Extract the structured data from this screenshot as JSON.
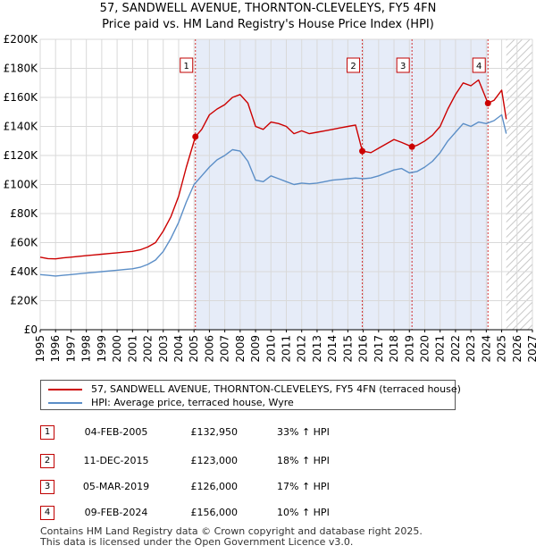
{
  "chart_data": {
    "type": "line",
    "title": "57, SANDWELL AVENUE, THORNTON-CLEVELEYS, FY5 4FN",
    "subtitle": "Price paid vs. HM Land Registry's House Price Index (HPI)",
    "xlim": [
      1995,
      2027
    ],
    "ylim": [
      0,
      200000
    ],
    "x_ticks": [
      "1995",
      "1996",
      "1997",
      "1998",
      "1999",
      "2000",
      "2001",
      "2002",
      "2003",
      "2004",
      "2005",
      "2006",
      "2007",
      "2008",
      "2009",
      "2010",
      "2011",
      "2012",
      "2013",
      "2014",
      "2015",
      "2016",
      "2017",
      "2018",
      "2019",
      "2020",
      "2021",
      "2022",
      "2023",
      "2024",
      "2025",
      "2026",
      "2027"
    ],
    "y_ticks": [
      {
        "value": 0,
        "label": "£0"
      },
      {
        "value": 20000,
        "label": "£20K"
      },
      {
        "value": 40000,
        "label": "£40K"
      },
      {
        "value": 60000,
        "label": "£60K"
      },
      {
        "value": 80000,
        "label": "£80K"
      },
      {
        "value": 100000,
        "label": "£100K"
      },
      {
        "value": 120000,
        "label": "£120K"
      },
      {
        "value": 140000,
        "label": "£140K"
      },
      {
        "value": 160000,
        "label": "£160K"
      },
      {
        "value": 180000,
        "label": "£180K"
      },
      {
        "value": 200000,
        "label": "£200K"
      }
    ],
    "grid": true,
    "hatched_region_start": 2025.3,
    "series": [
      {
        "name": "57, SANDWELL AVENUE, THORNTON-CLEVELEYS, FY5 4FN (terraced house)",
        "color": "#cc0000",
        "x": [
          1995.0,
          1995.5,
          1996.0,
          1996.5,
          1997.0,
          1997.5,
          1998.0,
          1998.5,
          1999.0,
          1999.5,
          2000.0,
          2000.5,
          2001.0,
          2001.5,
          2002.0,
          2002.5,
          2003.0,
          2003.5,
          2004.0,
          2004.5,
          2005.09,
          2005.5,
          2006.0,
          2006.5,
          2007.0,
          2007.5,
          2008.0,
          2008.5,
          2009.0,
          2009.5,
          2010.0,
          2010.5,
          2011.0,
          2011.5,
          2012.0,
          2012.5,
          2013.0,
          2013.5,
          2014.0,
          2014.5,
          2015.0,
          2015.5,
          2015.94,
          2016.5,
          2017.0,
          2017.5,
          2018.0,
          2018.5,
          2019.17,
          2019.5,
          2020.0,
          2020.5,
          2021.0,
          2021.5,
          2022.0,
          2022.5,
          2023.0,
          2023.5,
          2024.11,
          2024.5,
          2025.0,
          2025.3
        ],
        "values": [
          50000,
          49000,
          48800,
          49500,
          50000,
          50500,
          51000,
          51500,
          52000,
          52500,
          53000,
          53500,
          54000,
          55000,
          57000,
          60000,
          68000,
          78000,
          92000,
          112000,
          132950,
          138000,
          148000,
          152000,
          155000,
          160000,
          162000,
          156000,
          140000,
          138000,
          143000,
          142000,
          140000,
          135000,
          137000,
          135000,
          136000,
          137000,
          138000,
          139000,
          140000,
          141000,
          123000,
          122000,
          125000,
          128000,
          131000,
          129000,
          126000,
          127000,
          130000,
          134000,
          140000,
          152000,
          162000,
          170000,
          168000,
          172000,
          156000,
          158000,
          165000,
          145000
        ]
      },
      {
        "name": "HPI: Average price, terraced house, Wyre",
        "color": "#5b8ec7",
        "x": [
          1995.0,
          1995.5,
          1996.0,
          1996.5,
          1997.0,
          1997.5,
          1998.0,
          1998.5,
          1999.0,
          1999.5,
          2000.0,
          2000.5,
          2001.0,
          2001.5,
          2002.0,
          2002.5,
          2003.0,
          2003.5,
          2004.0,
          2004.5,
          2005.0,
          2005.5,
          2006.0,
          2006.5,
          2007.0,
          2007.5,
          2008.0,
          2008.5,
          2009.0,
          2009.5,
          2010.0,
          2010.5,
          2011.0,
          2011.5,
          2012.0,
          2012.5,
          2013.0,
          2013.5,
          2014.0,
          2014.5,
          2015.0,
          2015.5,
          2016.0,
          2016.5,
          2017.0,
          2017.5,
          2018.0,
          2018.5,
          2019.0,
          2019.5,
          2020.0,
          2020.5,
          2021.0,
          2021.5,
          2022.0,
          2022.5,
          2023.0,
          2023.5,
          2024.0,
          2024.5,
          2025.0,
          2025.3
        ],
        "values": [
          38000,
          37500,
          37000,
          37500,
          38000,
          38500,
          39000,
          39500,
          40000,
          40500,
          41000,
          41500,
          42000,
          43000,
          45000,
          48000,
          54000,
          63000,
          74000,
          88000,
          100000,
          106000,
          112000,
          117000,
          120000,
          124000,
          123000,
          116000,
          103000,
          102000,
          106000,
          104000,
          102000,
          100000,
          101000,
          100500,
          101000,
          102000,
          103000,
          103500,
          104000,
          104500,
          104000,
          104500,
          106000,
          108000,
          110000,
          111000,
          108000,
          109000,
          112000,
          116000,
          122000,
          130000,
          136000,
          142000,
          140000,
          143000,
          142000,
          144000,
          148000,
          135000
        ]
      }
    ],
    "sales": [
      {
        "num": "1",
        "x": 2005.09,
        "value": 132950
      },
      {
        "num": "2",
        "x": 2015.94,
        "value": 123000
      },
      {
        "num": "3",
        "x": 2019.17,
        "value": 126000
      },
      {
        "num": "4",
        "x": 2024.11,
        "value": 156000
      }
    ]
  },
  "legend": {
    "property": "57, SANDWELL AVENUE, THORNTON-CLEVELEYS, FY5 4FN (terraced house)",
    "hpi": "HPI: Average price, terraced house, Wyre"
  },
  "sales_table": [
    {
      "num": "1",
      "date": "04-FEB-2005",
      "price": "£132,950",
      "hpi": "33% ↑ HPI"
    },
    {
      "num": "2",
      "date": "11-DEC-2015",
      "price": "£123,000",
      "hpi": "18% ↑ HPI"
    },
    {
      "num": "3",
      "date": "05-MAR-2019",
      "price": "£126,000",
      "hpi": "17% ↑ HPI"
    },
    {
      "num": "4",
      "date": "09-FEB-2024",
      "price": "£156,000",
      "hpi": "10% ↑ HPI"
    }
  ],
  "footer": {
    "line1": "Contains HM Land Registry data © Crown copyright and database right 2025.",
    "line2": "This data is licensed under the Open Government Licence v3.0."
  }
}
